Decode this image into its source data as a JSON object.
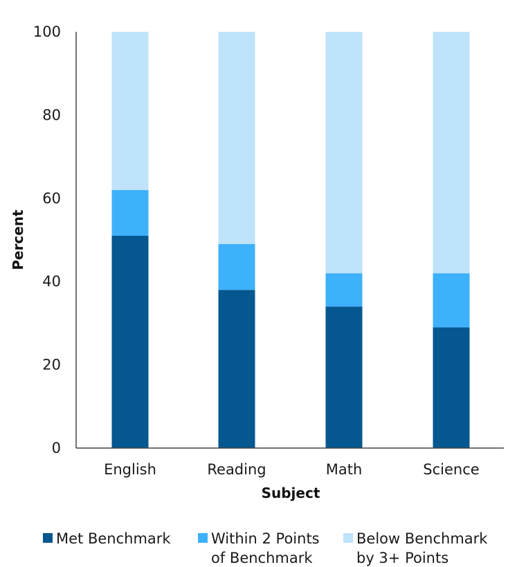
{
  "chart_data": {
    "type": "bar",
    "stacked": true,
    "title": "",
    "xlabel": "Subject",
    "ylabel": "Percent",
    "categories": [
      "English",
      "Reading",
      "Math",
      "Science"
    ],
    "ylim": [
      0,
      100
    ],
    "yticks": [
      0,
      20,
      40,
      60,
      80,
      100
    ],
    "grid": false,
    "legend_position": "bottom",
    "series": [
      {
        "name": "Met Benchmark",
        "legend_lines": [
          "Met Benchmark"
        ],
        "color": "#04578f",
        "values": [
          51,
          38,
          34,
          29
        ]
      },
      {
        "name": "Within 2 Points of Benchmark",
        "legend_lines": [
          "Within 2 Points",
          "of Benchmark"
        ],
        "color": "#3db1fc",
        "values": [
          11,
          11,
          8,
          13
        ]
      },
      {
        "name": "Below Benchmark by 3+ Points",
        "legend_lines": [
          "Below Benchmark",
          "by 3+ Points"
        ],
        "color": "#bfe3fb",
        "values": [
          38,
          51,
          58,
          58
        ]
      }
    ]
  }
}
